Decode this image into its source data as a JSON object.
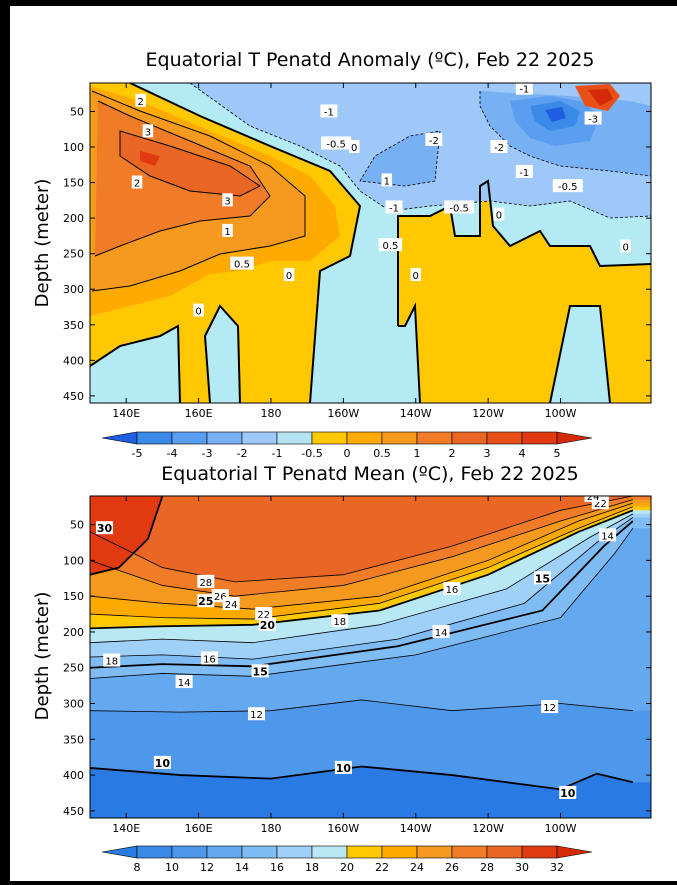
{
  "chart_data": [
    {
      "type": "heatmap",
      "title": "Equatorial T Penatd Anomaly (ºC), Feb 22 2025",
      "ylabel": "Depth (meter)",
      "xlabel": "",
      "x_ticks": [
        "140E",
        "160E",
        "180",
        "160W",
        "140W",
        "120W",
        "100W"
      ],
      "y_ticks": [
        "50",
        "100",
        "150",
        "200",
        "250",
        "300",
        "350",
        "400",
        "450"
      ],
      "ylim": [
        460,
        10
      ],
      "legend_labels": [
        "-5",
        "-4",
        "-3",
        "-2",
        "-1",
        "-0.5",
        "0",
        "0.5",
        "1",
        "2",
        "3",
        "4",
        "5"
      ],
      "legend_colors": [
        "#1e5ee0",
        "#3c8ae8",
        "#5a9ef0",
        "#78b0f4",
        "#9ec8f8",
        "#b4e4f2",
        "#ffc800",
        "#ffaa00",
        "#f59a1e",
        "#f07c28",
        "#ea6624",
        "#e85018",
        "#e23a10",
        "#d42a08"
      ],
      "contour_labels": [
        {
          "text": "2",
          "lon": 144,
          "depth": 35
        },
        {
          "text": "3",
          "lon": 146,
          "depth": 78
        },
        {
          "text": "2",
          "lon": 143,
          "depth": 150
        },
        {
          "text": "3",
          "lon": 168,
          "depth": 175
        },
        {
          "text": "1",
          "lon": 168,
          "depth": 218
        },
        {
          "text": "0.5",
          "lon": 172,
          "depth": 264
        },
        {
          "text": "1",
          "lon": 212,
          "depth": 147
        },
        {
          "text": "0.5",
          "lon": 213,
          "depth": 238
        },
        {
          "text": "0",
          "lon": 185,
          "depth": 280
        },
        {
          "text": "0",
          "lon": 160,
          "depth": 330
        },
        {
          "text": "0",
          "lon": 220,
          "depth": 280
        },
        {
          "text": "0",
          "lon": 243,
          "depth": 195
        },
        {
          "text": "0",
          "lon": 278,
          "depth": 240
        },
        {
          "text": "-0.5",
          "lon": 198,
          "depth": 95
        },
        {
          "text": "0",
          "lon": 203,
          "depth": 100
        },
        {
          "text": "-1",
          "lon": 196,
          "depth": 50
        },
        {
          "text": "-1",
          "lon": 250,
          "depth": 18
        },
        {
          "text": "-2",
          "lon": 225,
          "depth": 90
        },
        {
          "text": "-3",
          "lon": 269,
          "depth": 60
        },
        {
          "text": "-2",
          "lon": 243,
          "depth": 100
        },
        {
          "text": "-1",
          "lon": 250,
          "depth": 135
        },
        {
          "text": "-0.5",
          "lon": 262,
          "depth": 155
        },
        {
          "text": "-1",
          "lon": 214,
          "depth": 185
        },
        {
          "text": "-0.5",
          "lon": 232,
          "depth": 185
        }
      ]
    },
    {
      "type": "heatmap",
      "title": "Equatorial T Penatd Mean (ºC), Feb 22 2025",
      "ylabel": "Depth (meter)",
      "xlabel": "",
      "x_ticks": [
        "140E",
        "160E",
        "180",
        "160W",
        "140W",
        "120W",
        "100W"
      ],
      "y_ticks": [
        "50",
        "100",
        "150",
        "200",
        "250",
        "300",
        "350",
        "400",
        "450"
      ],
      "ylim": [
        460,
        10
      ],
      "legend_labels": [
        "8",
        "10",
        "12",
        "14",
        "16",
        "18",
        "20",
        "22",
        "24",
        "26",
        "28",
        "30",
        "32"
      ],
      "legend_colors": [
        "#2a7ae4",
        "#3c8ae8",
        "#4e98ec",
        "#64a8f0",
        "#80bcf4",
        "#9ed0f8",
        "#b8e8f4",
        "#ffc800",
        "#ffaa00",
        "#f59a1e",
        "#f07c28",
        "#ea6624",
        "#e23a10",
        "#d42a08"
      ],
      "isotherms": [
        {
          "temp": 28,
          "points": [
            [
              130,
              60
            ],
            [
              150,
              110
            ],
            [
              170,
              130
            ],
            [
              200,
              120
            ],
            [
              230,
              80
            ],
            [
              260,
              30
            ],
            [
              280,
              10
            ]
          ]
        },
        {
          "temp": 26,
          "points": [
            [
              130,
              100
            ],
            [
              150,
              135
            ],
            [
              170,
              150
            ],
            [
              200,
              135
            ],
            [
              230,
              95
            ],
            [
              260,
              45
            ],
            [
              280,
              15
            ]
          ]
        },
        {
          "temp": 24,
          "points": [
            [
              130,
              150
            ],
            [
              150,
              160
            ],
            [
              175,
              168
            ],
            [
              210,
              150
            ],
            [
              240,
              100
            ],
            [
              265,
              45
            ],
            [
              280,
              20
            ]
          ]
        },
        {
          "temp": 22,
          "points": [
            [
              130,
              175
            ],
            [
              150,
              180
            ],
            [
              175,
              182
            ],
            [
              210,
              160
            ],
            [
              240,
              110
            ],
            [
              265,
              55
            ],
            [
              280,
              25
            ]
          ]
        },
        {
          "temp": 20,
          "points": [
            [
              130,
              195
            ],
            [
              150,
              192
            ],
            [
              175,
              190
            ],
            [
              210,
              170
            ],
            [
              240,
              120
            ],
            [
              265,
              60
            ],
            [
              280,
              30
            ]
          ]
        },
        {
          "temp": 18,
          "points": [
            [
              130,
              215
            ],
            [
              150,
              210
            ],
            [
              175,
              215
            ],
            [
              210,
              190
            ],
            [
              245,
              140
            ],
            [
              268,
              68
            ],
            [
              280,
              35
            ]
          ]
        },
        {
          "temp": 16,
          "points": [
            [
              130,
              235
            ],
            [
              150,
              232
            ],
            [
              175,
              238
            ],
            [
              215,
              210
            ],
            [
              250,
              160
            ],
            [
              270,
              75
            ],
            [
              280,
              40
            ]
          ]
        },
        {
          "temp": 15,
          "points": [
            [
              130,
              250
            ],
            [
              150,
              245
            ],
            [
              175,
              248
            ],
            [
              215,
              220
            ],
            [
              255,
              170
            ],
            [
              272,
              80
            ],
            [
              280,
              45
            ]
          ]
        },
        {
          "temp": 14,
          "points": [
            [
              130,
              265
            ],
            [
              150,
              258
            ],
            [
              175,
              262
            ],
            [
              220,
              232
            ],
            [
              260,
              180
            ],
            [
              275,
              90
            ],
            [
              280,
              55
            ]
          ]
        },
        {
          "temp": 12,
          "points": [
            [
              130,
              310
            ],
            [
              155,
              312
            ],
            [
              180,
              310
            ],
            [
              205,
              295
            ],
            [
              230,
              310
            ],
            [
              260,
              300
            ],
            [
              280,
              310
            ]
          ]
        },
        {
          "temp": 10,
          "points": [
            [
              130,
              390
            ],
            [
              155,
              400
            ],
            [
              180,
              405
            ],
            [
              205,
              388
            ],
            [
              230,
              400
            ],
            [
              260,
              420
            ],
            [
              270,
              398
            ],
            [
              280,
              410
            ]
          ]
        }
      ],
      "contour_labels": [
        {
          "text": "30",
          "lon": 134,
          "depth": 55
        },
        {
          "text": "28",
          "lon": 162,
          "depth": 130
        },
        {
          "text": "26",
          "lon": 166,
          "depth": 150
        },
        {
          "text": "25",
          "lon": 162,
          "depth": 157
        },
        {
          "text": "24",
          "lon": 169,
          "depth": 161
        },
        {
          "text": "22",
          "lon": 178,
          "depth": 175
        },
        {
          "text": "20",
          "lon": 179,
          "depth": 190
        },
        {
          "text": "18",
          "lon": 199,
          "depth": 185
        },
        {
          "text": "16",
          "lon": 230,
          "depth": 140
        },
        {
          "text": "15",
          "lon": 255,
          "depth": 125
        },
        {
          "text": "14",
          "lon": 227,
          "depth": 200
        },
        {
          "text": "14",
          "lon": 273,
          "depth": 65
        },
        {
          "text": "22",
          "lon": 271,
          "depth": 20
        },
        {
          "text": "24",
          "lon": 269,
          "depth": 10
        },
        {
          "text": "18",
          "lon": 136,
          "depth": 240
        },
        {
          "text": "16",
          "lon": 163,
          "depth": 237
        },
        {
          "text": "15",
          "lon": 177,
          "depth": 255
        },
        {
          "text": "14",
          "lon": 156,
          "depth": 270
        },
        {
          "text": "12",
          "lon": 176,
          "depth": 315
        },
        {
          "text": "12",
          "lon": 257,
          "depth": 305
        },
        {
          "text": "10",
          "lon": 150,
          "depth": 383
        },
        {
          "text": "10",
          "lon": 200,
          "depth": 390
        },
        {
          "text": "10",
          "lon": 262,
          "depth": 425
        }
      ]
    }
  ]
}
